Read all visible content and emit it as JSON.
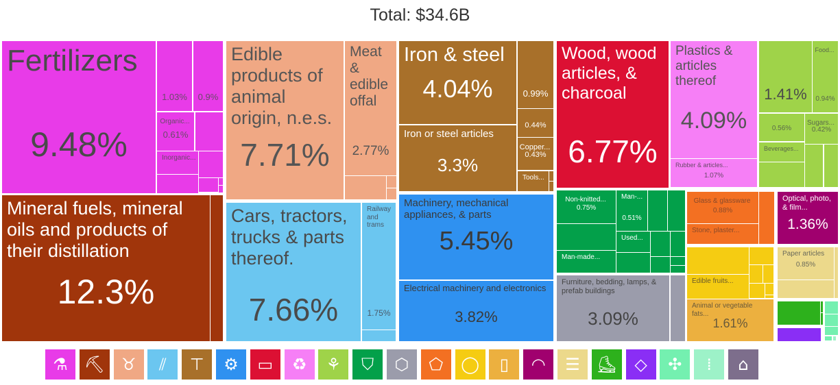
{
  "title": "Total: $34.6B",
  "chart_data": {
    "type": "treemap",
    "title": "Total: $34.6B",
    "total": "$34.6B",
    "cells": [
      {
        "section": "Chemical Products",
        "label": "Fertilizers",
        "share": "9.48%",
        "color": "#e83be8",
        "text": "#4a4a4a"
      },
      {
        "section": "Chemical Products",
        "label": "",
        "share": "1.03%",
        "color": "#e83be8",
        "text": "#6a4a6a"
      },
      {
        "section": "Chemical Products",
        "label": "",
        "share": "0.9%",
        "color": "#e83be8",
        "text": "#6a4a6a"
      },
      {
        "section": "Chemical Products",
        "label": "Organic...",
        "share": "0.61%",
        "color": "#e83be8",
        "text": "#6a4a6a"
      },
      {
        "section": "Chemical Products",
        "label": "",
        "share": "",
        "color": "#e83be8",
        "text": "#6a4a6a"
      },
      {
        "section": "Chemical Products",
        "label": "Inorganic...",
        "share": "",
        "color": "#e83be8",
        "text": "#6a4a6a"
      },
      {
        "section": "Chemical Products",
        "label": "",
        "share": "",
        "color": "#e83be8",
        "text": "#6a4a6a"
      },
      {
        "section": "Chemical Products",
        "label": "",
        "share": "",
        "color": "#e83be8",
        "text": "#6a4a6a"
      },
      {
        "section": "Chemical Products",
        "label": "",
        "share": "",
        "color": "#e83be8",
        "text": "#6a4a6a"
      },
      {
        "section": "Chemical Products",
        "label": "",
        "share": "",
        "color": "#e83be8",
        "text": "#6a4a6a"
      },
      {
        "section": "Chemical Products",
        "label": "",
        "share": "",
        "color": "#e83be8",
        "text": "#6a4a6a"
      },
      {
        "section": "Mineral Products",
        "label": "Mineral fuels, mineral oils and products of their distillation",
        "share": "12.3%",
        "color": "#a0350b",
        "text": "#ffffff"
      },
      {
        "section": "Mineral Products",
        "label": "",
        "share": "",
        "color": "#a0350b",
        "text": "#ffffff"
      },
      {
        "section": "Animal Products",
        "label": "Edible products of animal origin, n.e.s.",
        "share": "7.71%",
        "color": "#f0a884",
        "text": "#555555"
      },
      {
        "section": "Animal Products",
        "label": "Meat & edible offal",
        "share": "2.77%",
        "color": "#f0a884",
        "text": "#555555"
      },
      {
        "section": "Animal Products",
        "label": "",
        "share": "",
        "color": "#f0a884",
        "text": "#555555"
      },
      {
        "section": "Animal Products",
        "label": "",
        "share": "",
        "color": "#f0a884",
        "text": "#555555"
      },
      {
        "section": "Animal Products",
        "label": "",
        "share": "",
        "color": "#f0a884",
        "text": "#555555"
      },
      {
        "section": "Transportation",
        "label": "Cars, tractors, trucks & parts thereof.",
        "share": "7.66%",
        "color": "#6bc6f0",
        "text": "#4a4a4a"
      },
      {
        "section": "Transportation",
        "label": "Railway and trams",
        "share": "1.75%",
        "color": "#6bc6f0",
        "text": "#4a5a6a"
      },
      {
        "section": "Transportation",
        "label": "",
        "share": "",
        "color": "#6bc6f0",
        "text": "#4a5a6a"
      },
      {
        "section": "Metals",
        "label": "Iron & steel",
        "share": "4.04%",
        "color": "#a8702a",
        "text": "#ffffff"
      },
      {
        "section": "Metals",
        "label": "Iron or steel articles",
        "share": "3.3%",
        "color": "#a8702a",
        "text": "#ffffff"
      },
      {
        "section": "Metals",
        "label": "",
        "share": "0.99%",
        "color": "#a8702a",
        "text": "#ffffff"
      },
      {
        "section": "Metals",
        "label": "",
        "share": "0.44%",
        "color": "#a8702a",
        "text": "#ffffff"
      },
      {
        "section": "Metals",
        "label": "Copper...",
        "share": "0.43%",
        "color": "#a8702a",
        "text": "#ffffff"
      },
      {
        "section": "Metals",
        "label": "Tools...",
        "share": "",
        "color": "#a8702a",
        "text": "#ffffff"
      },
      {
        "section": "Metals",
        "label": "",
        "share": "",
        "color": "#a8702a",
        "text": "#ffffff"
      },
      {
        "section": "Metals",
        "label": "",
        "share": "",
        "color": "#a8702a",
        "text": "#ffffff"
      },
      {
        "section": "Machines",
        "label": "Machinery, mechanical appliances, & parts",
        "share": "5.45%",
        "color": "#2f91f0",
        "text": "#3a3a3a"
      },
      {
        "section": "Machines",
        "label": "Electrical machinery and electronics",
        "share": "3.82%",
        "color": "#2f91f0",
        "text": "#3a3a3a"
      },
      {
        "section": "Wood Products",
        "label": "Wood, wood articles, & charcoal",
        "share": "6.77%",
        "color": "#dc1033",
        "text": "#ffffff"
      },
      {
        "section": "Plastics and Rubbers",
        "label": "Plastics & articles thereof",
        "share": "4.09%",
        "color": "#f67ff6",
        "text": "#555555"
      },
      {
        "section": "Plastics and Rubbers",
        "label": "Rubber & articles...",
        "share": "1.07%",
        "color": "#f67ff6",
        "text": "#6a4a6a"
      },
      {
        "section": "Vegetable Products",
        "label": "",
        "share": "1.41%",
        "color": "#9fd349",
        "text": "#4a4a4a"
      },
      {
        "section": "Vegetable Products",
        "label": "Food...",
        "share": "0.94%",
        "color": "#9fd349",
        "text": "#5a6a4a"
      },
      {
        "section": "Vegetable Products",
        "label": "",
        "share": "0.56%",
        "color": "#9fd349",
        "text": "#5a6a4a"
      },
      {
        "section": "Vegetable Products",
        "label": "Sugars...",
        "share": "0.42%",
        "color": "#9fd349",
        "text": "#5a6a4a"
      },
      {
        "section": "Vegetable Products",
        "label": "Beverages...",
        "share": "",
        "color": "#9fd349",
        "text": "#5a6a4a"
      },
      {
        "section": "Vegetable Products",
        "label": "",
        "share": "",
        "color": "#9fd349",
        "text": "#5a6a4a"
      },
      {
        "section": "Vegetable Products",
        "label": "",
        "share": "",
        "color": "#9fd349",
        "text": "#5a6a4a"
      },
      {
        "section": "Vegetable Products",
        "label": "",
        "share": "",
        "color": "#9fd349",
        "text": "#5a6a4a"
      },
      {
        "section": "Textiles",
        "label": "Non-knitted...",
        "share": "0.75%",
        "color": "#03a04a",
        "text": "#ffffff"
      },
      {
        "section": "Textiles",
        "label": "",
        "share": "",
        "color": "#03a04a",
        "text": "#ffffff"
      },
      {
        "section": "Textiles",
        "label": "Man-made...",
        "share": "",
        "color": "#03a04a",
        "text": "#ffffff"
      },
      {
        "section": "Textiles",
        "label": "Man-...",
        "share": "0.51%",
        "color": "#03a04a",
        "text": "#ffffff"
      },
      {
        "section": "Textiles",
        "label": "",
        "share": "",
        "color": "#03a04a",
        "text": "#ffffff"
      },
      {
        "section": "Textiles",
        "label": "",
        "share": "",
        "color": "#03a04a",
        "text": "#ffffff"
      },
      {
        "section": "Textiles",
        "label": "Used...",
        "share": "",
        "color": "#03a04a",
        "text": "#ffffff"
      },
      {
        "section": "Textiles",
        "label": "",
        "share": "",
        "color": "#03a04a",
        "text": "#ffffff"
      },
      {
        "section": "Textiles",
        "label": "",
        "share": "",
        "color": "#03a04a",
        "text": "#ffffff"
      },
      {
        "section": "Textiles",
        "label": "",
        "share": "",
        "color": "#03a04a",
        "text": "#ffffff"
      },
      {
        "section": "Textiles",
        "label": "",
        "share": "",
        "color": "#03a04a",
        "text": "#ffffff"
      },
      {
        "section": "Textiles",
        "label": "",
        "share": "",
        "color": "#03a04a",
        "text": "#ffffff"
      },
      {
        "section": "Textiles",
        "label": "",
        "share": "",
        "color": "#03a04a",
        "text": "#ffffff"
      },
      {
        "section": "Miscellaneous",
        "label": "Furniture, bedding, lamps, & prefab buildings",
        "share": "3.09%",
        "color": "#9b9cab",
        "text": "#444444"
      },
      {
        "section": "Miscellaneous",
        "label": "",
        "share": "",
        "color": "#9b9cab",
        "text": "#444444"
      },
      {
        "section": "Stone And Glass",
        "label": "Glass & glassware",
        "share": "0.88%",
        "color": "#f37022",
        "text": "#8a4a2a"
      },
      {
        "section": "Stone And Glass",
        "label": "Stone, plaster...",
        "share": "",
        "color": "#f37022",
        "text": "#8a4a2a"
      },
      {
        "section": "Stone And Glass",
        "label": "",
        "share": "",
        "color": "#f37022",
        "text": "#8a4a2a"
      },
      {
        "section": "Instruments",
        "label": "Optical, photo, & film...",
        "share": "1.36%",
        "color": "#a0006e",
        "text": "#ffffff"
      },
      {
        "section": "Foodstuffs",
        "label": "",
        "share": "",
        "color": "#f5cc12",
        "text": "#6a5a2a"
      },
      {
        "section": "Foodstuffs",
        "label": "Edible fruits...",
        "share": "",
        "color": "#f5cc12",
        "text": "#6a5a2a"
      },
      {
        "section": "Foodstuffs",
        "label": "",
        "share": "",
        "color": "#f5cc12",
        "text": "#6a5a2a"
      },
      {
        "section": "Foodstuffs",
        "label": "",
        "share": "",
        "color": "#f5cc12",
        "text": "#6a5a2a"
      },
      {
        "section": "Foodstuffs",
        "label": "",
        "share": "",
        "color": "#f5cc12",
        "text": "#6a5a2a"
      },
      {
        "section": "Foodstuffs",
        "label": "",
        "share": "",
        "color": "#f5cc12",
        "text": "#6a5a2a"
      },
      {
        "section": "Foodstuffs",
        "label": "",
        "share": "",
        "color": "#f5cc12",
        "text": "#6a5a2a"
      },
      {
        "section": "Foodstuffs",
        "label": "",
        "share": "",
        "color": "#f5cc12",
        "text": "#6a5a2a"
      },
      {
        "section": "Animal and Vegetable Bi-Products",
        "label": "Animal or vegetable fats...",
        "share": "1.61%",
        "color": "#ecb03f",
        "text": "#6a5a3a"
      },
      {
        "section": "Paper Goods",
        "label": "Paper articles",
        "share": "0.85%",
        "color": "#ecd98b",
        "text": "#6a6a5a"
      },
      {
        "section": "Paper Goods",
        "label": "",
        "share": "",
        "color": "#ecd98b",
        "text": "#6a6a5a"
      },
      {
        "section": "Paper Goods",
        "label": "",
        "share": "",
        "color": "#ecd98b",
        "text": "#6a6a5a"
      },
      {
        "section": "Footwear and Headwear",
        "label": "",
        "share": "",
        "color": "#2db11c",
        "text": "#ffffff"
      },
      {
        "section": "Footwear and Headwear",
        "label": "",
        "share": "",
        "color": "#2db11c",
        "text": "#ffffff"
      },
      {
        "section": "Footwear and Headwear",
        "label": "",
        "share": "",
        "color": "#2db11c",
        "text": "#ffffff"
      },
      {
        "section": "Precious Metals",
        "label": "",
        "share": "",
        "color": "#8a2ef5",
        "text": "#ffffff"
      },
      {
        "section": "Animal Hides",
        "label": "",
        "share": "",
        "color": "#74f0b0",
        "text": "#ffffff"
      },
      {
        "section": "Animal Hides",
        "label": "",
        "share": "",
        "color": "#74f0b0",
        "text": "#ffffff"
      },
      {
        "section": "Animal Hides",
        "label": "",
        "share": "",
        "color": "#74f0b0",
        "text": "#ffffff"
      },
      {
        "section": "Animal Hides",
        "label": "",
        "share": "",
        "color": "#74f0b0",
        "text": "#ffffff"
      },
      {
        "section": "Weapons",
        "label": "",
        "share": "",
        "color": "#9df2c8",
        "text": "#ffffff"
      }
    ]
  },
  "legend": [
    {
      "name": "chemical-products",
      "icon": "flask-icon",
      "glyph": "⚗",
      "color": "#e83be8"
    },
    {
      "name": "mineral-products",
      "icon": "pickaxe-icon",
      "glyph": "⛏",
      "color": "#a0350b"
    },
    {
      "name": "animal-products",
      "icon": "cow-icon",
      "glyph": "♉",
      "color": "#f0a884"
    },
    {
      "name": "transportation",
      "icon": "road-icon",
      "glyph": "⫽",
      "color": "#6bc6f0"
    },
    {
      "name": "metals",
      "icon": "anvil-icon",
      "glyph": "⊤",
      "color": "#a8702a"
    },
    {
      "name": "machines",
      "icon": "gear-icon",
      "glyph": "⚙",
      "color": "#2f91f0"
    },
    {
      "name": "wood-products",
      "icon": "log-icon",
      "glyph": "▭",
      "color": "#dc1033"
    },
    {
      "name": "plastics-rubbers",
      "icon": "recycle-icon",
      "glyph": "♻",
      "color": "#f67ff6"
    },
    {
      "name": "vegetable-products",
      "icon": "wheat-icon",
      "glyph": "⚘",
      "color": "#9fd349"
    },
    {
      "name": "textiles",
      "icon": "tshirt-icon",
      "glyph": "⛉",
      "color": "#03a04a"
    },
    {
      "name": "miscellaneous",
      "icon": "box-icon",
      "glyph": "⬡",
      "color": "#9b9cab"
    },
    {
      "name": "stone-glass",
      "icon": "stone-icon",
      "glyph": "⬠",
      "color": "#f37022"
    },
    {
      "name": "foodstuffs",
      "icon": "fruit-icon",
      "glyph": "◯",
      "color": "#f5cc12"
    },
    {
      "name": "animal-vegetable-bi-products",
      "icon": "bottle-icon",
      "glyph": "▯",
      "color": "#ecb03f"
    },
    {
      "name": "instruments",
      "icon": "gauge-icon",
      "glyph": "◠",
      "color": "#a0006e"
    },
    {
      "name": "paper-goods",
      "icon": "scroll-icon",
      "glyph": "☰",
      "color": "#ecd98b"
    },
    {
      "name": "footwear-headwear",
      "icon": "shoe-icon",
      "glyph": "⛸",
      "color": "#2db11c"
    },
    {
      "name": "precious-metals",
      "icon": "diamond-icon",
      "glyph": "◇",
      "color": "#8a2ef5"
    },
    {
      "name": "animal-hides",
      "icon": "hide-icon",
      "glyph": "✣",
      "color": "#74f0b0"
    },
    {
      "name": "weapons",
      "icon": "bullets-icon",
      "glyph": "⁞",
      "color": "#9df2c8"
    },
    {
      "name": "arts-antiques",
      "icon": "easel-icon",
      "glyph": "⌂",
      "color": "#7d6e8c"
    }
  ]
}
